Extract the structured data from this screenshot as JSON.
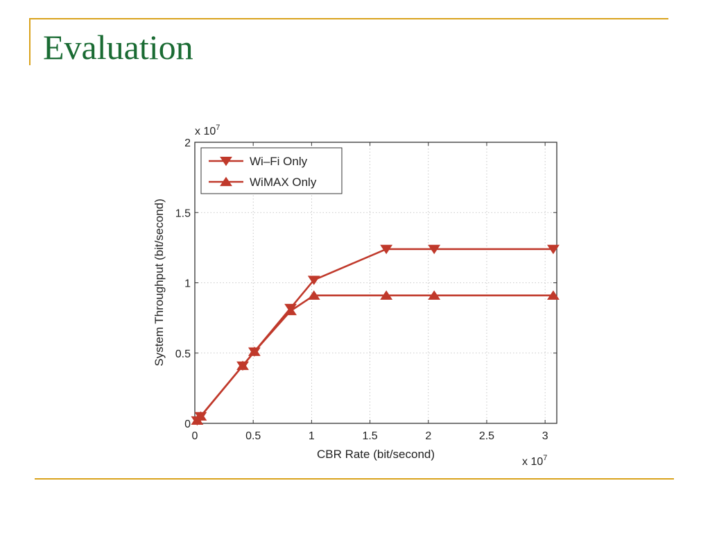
{
  "slide": {
    "title": "Evaluation"
  },
  "colors": {
    "title": "#1a6b33",
    "rule": "#d9a21b",
    "series": "#c0392b"
  },
  "chart_data": {
    "type": "line",
    "xlabel": "CBR Rate (bit/second)",
    "ylabel": "System Throughput (bit/second)",
    "x_multiplier": "x 10",
    "x_multiplier_exp": "7",
    "y_multiplier": "x 10",
    "y_multiplier_exp": "7",
    "xlim": [
      0,
      3.1
    ],
    "ylim": [
      0,
      2
    ],
    "xticks": [
      0,
      0.5,
      1,
      1.5,
      2,
      2.5,
      3
    ],
    "xtick_labels": [
      "0",
      "0.5",
      "1",
      "1.5",
      "2",
      "2.5",
      "3"
    ],
    "yticks": [
      0,
      0.5,
      1,
      1.5,
      2
    ],
    "ytick_labels": [
      "0",
      "0.5",
      "1",
      "1.5",
      "2"
    ],
    "grid": true,
    "legend_position": "top-left",
    "series": [
      {
        "name": "Wi–Fi Only",
        "marker": "triangle-down",
        "color": "#c0392b",
        "x": [
          0.02,
          0.05,
          0.41,
          0.51,
          0.82,
          1.02,
          1.64,
          2.05,
          3.07
        ],
        "y": [
          0.02,
          0.05,
          0.41,
          0.51,
          0.82,
          1.02,
          1.24,
          1.24,
          1.24
        ]
      },
      {
        "name": "WiMAX Only",
        "marker": "triangle-up",
        "color": "#c0392b",
        "x": [
          0.02,
          0.05,
          0.41,
          0.51,
          0.82,
          1.02,
          1.64,
          2.05,
          3.07
        ],
        "y": [
          0.02,
          0.05,
          0.41,
          0.51,
          0.8,
          0.91,
          0.91,
          0.91,
          0.91
        ]
      }
    ]
  }
}
